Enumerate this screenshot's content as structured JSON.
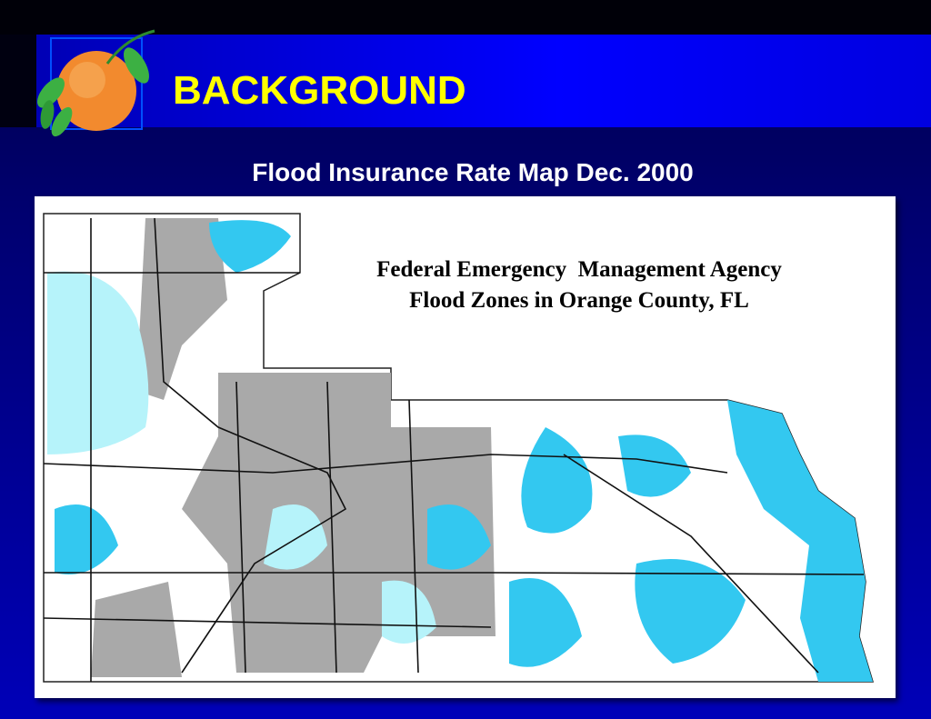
{
  "header": {
    "title": "BACKGROUND"
  },
  "subtitle": "Flood Insurance Rate Map Dec. 2000",
  "map": {
    "title_lines": [
      "Federal Emergency  Management Agency",
      "Flood Zones in Orange County, FL"
    ]
  }
}
